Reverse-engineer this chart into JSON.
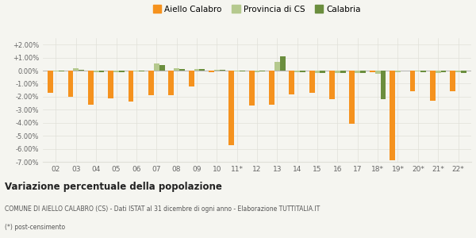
{
  "categories": [
    "02",
    "03",
    "04",
    "05",
    "06",
    "07",
    "08",
    "09",
    "10",
    "11*",
    "12",
    "13",
    "14",
    "15",
    "16",
    "17",
    "18*",
    "19*",
    "20*",
    "21*",
    "22*"
  ],
  "aiello": [
    -1.7,
    -2.0,
    -2.6,
    -2.1,
    -2.4,
    -1.9,
    -1.9,
    -1.2,
    -0.1,
    -5.7,
    -2.7,
    -2.6,
    -1.8,
    -1.7,
    -2.2,
    -4.1,
    -0.1,
    -6.9,
    -1.6,
    -2.3,
    -1.6
  ],
  "provincia": [
    -0.05,
    0.2,
    -0.1,
    -0.1,
    -0.05,
    0.55,
    0.2,
    0.1,
    0.05,
    -0.05,
    -0.1,
    0.65,
    -0.1,
    -0.2,
    -0.2,
    -0.2,
    -0.25,
    -0.1,
    -0.05,
    -0.15,
    -0.1
  ],
  "calabria": [
    -0.05,
    0.05,
    -0.1,
    -0.1,
    -0.05,
    0.4,
    0.15,
    0.1,
    0.05,
    -0.05,
    -0.05,
    1.1,
    -0.1,
    -0.2,
    -0.15,
    -0.15,
    -2.2,
    -0.0,
    -0.1,
    -0.1,
    -0.2
  ],
  "color_aiello": "#f5921e",
  "color_provincia": "#b5c98e",
  "color_calabria": "#6b8e3e",
  "legend_labels": [
    "Aiello Calabro",
    "Provincia di CS",
    "Calabria"
  ],
  "title": "Variazione percentuale della popolazione",
  "subtitle": "COMUNE DI AIELLO CALABRO (CS) - Dati ISTAT al 31 dicembre di ogni anno - Elaborazione TUTTITALIA.IT",
  "footnote": "(*) post-censimento",
  "ylim": [
    -7.0,
    2.5
  ],
  "yticks": [
    -7.0,
    -6.0,
    -5.0,
    -4.0,
    -3.0,
    -2.0,
    -1.0,
    0.0,
    1.0,
    2.0
  ],
  "ytick_labels": [
    "-7.00%",
    "-6.00%",
    "-5.00%",
    "-4.00%",
    "-3.00%",
    "-2.00%",
    "-1.00%",
    "0.00%",
    "+1.00%",
    "+2.00%"
  ],
  "bg_color": "#f5f5f0",
  "grid_color": "#e0e0d8"
}
